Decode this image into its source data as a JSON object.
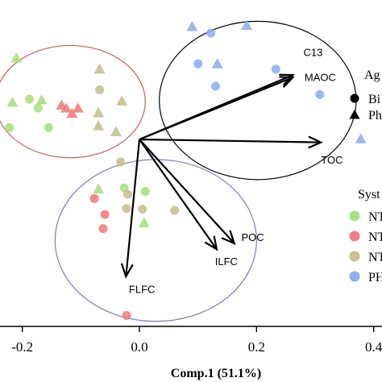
{
  "chart_data": {
    "type": "scatter",
    "subtype": "PCA biplot",
    "xlabel": "Comp.1 (51.1%)",
    "ylabel": "",
    "xlim": [
      -0.24,
      0.41
    ],
    "ylim": [
      -0.31,
      0.21
    ],
    "x_ticks": [
      -0.2,
      0.0,
      0.2,
      0.4
    ],
    "x_tick_labels": [
      "-0.2",
      "0.0",
      "0.2",
      "0.4"
    ],
    "grid": false,
    "colors": {
      "NT_green": "#a8e080",
      "NT_red": "#f08080",
      "NT_olive": "#c8c090",
      "PH_blue": "#8fb0f0",
      "arrow": "#000000",
      "ellipse_red": "#c06060",
      "ellipse_black": "#000000",
      "ellipse_purple": "#8080b0"
    },
    "legend": {
      "placement": "right",
      "shape_title": "Ag",
      "shape_entries": [
        {
          "label": "Bi",
          "marker": "circle"
        },
        {
          "label": "Ph",
          "marker": "triangle"
        }
      ],
      "color_title": "Syst",
      "color_entries": [
        {
          "label": "NT",
          "color": "#a8e080"
        },
        {
          "label": "NT",
          "color": "#f08080"
        },
        {
          "label": "NT",
          "color": "#c8c090"
        },
        {
          "label": "PH",
          "color": "#8fb0f0"
        }
      ]
    },
    "arrows": [
      {
        "label": "C13",
        "x": 0.262,
        "y": 0.109
      },
      {
        "label": "MAOC",
        "x": 0.262,
        "y": 0.105
      },
      {
        "label": "TOC",
        "x": 0.31,
        "y": -0.005
      },
      {
        "label": "POC",
        "x": 0.162,
        "y": -0.176
      },
      {
        "label": "ILFC",
        "x": 0.132,
        "y": -0.186
      },
      {
        "label": "FLFC",
        "x": -0.023,
        "y": -0.232
      }
    ],
    "arrow_label_offsets": {
      "C13": [
        0.018,
        0.032
      ],
      "MAOC": [
        0.02,
        -0.006
      ],
      "TOC": [
        0.0,
        -0.036
      ],
      "POC": [
        0.012,
        0.004
      ],
      "ILFC": [
        -0.003,
        -0.027
      ],
      "FLFC": [
        0.005,
        -0.028
      ]
    },
    "ellipses": [
      {
        "color": "#c06060",
        "cx": -0.118,
        "cy": 0.064,
        "rx": 0.128,
        "ry": 0.095
      },
      {
        "color": "#000000",
        "cx": 0.202,
        "cy": 0.066,
        "rx": 0.168,
        "ry": 0.134
      },
      {
        "color": "#8080b0",
        "cx": 0.028,
        "cy": -0.171,
        "rx": 0.172,
        "ry": 0.137
      }
    ],
    "series": [
      {
        "name": "NT",
        "color": "#a8e080",
        "points": [
          {
            "x": -0.21,
            "y": 0.137,
            "marker": "triangle"
          },
          {
            "x": -0.217,
            "y": 0.062,
            "marker": "triangle"
          },
          {
            "x": -0.188,
            "y": 0.068,
            "marker": "circle"
          },
          {
            "x": -0.167,
            "y": 0.066,
            "marker": "triangle"
          },
          {
            "x": -0.173,
            "y": 0.053,
            "marker": "circle"
          },
          {
            "x": -0.222,
            "y": 0.02,
            "marker": "circle"
          },
          {
            "x": -0.155,
            "y": 0.02,
            "marker": "circle"
          },
          {
            "x": -0.07,
            "y": -0.085,
            "marker": "triangle"
          },
          {
            "x": -0.026,
            "y": -0.082,
            "marker": "circle"
          },
          {
            "x": 0.01,
            "y": -0.088,
            "marker": "circle"
          },
          {
            "x": 0.008,
            "y": -0.142,
            "marker": "triangle"
          }
        ]
      },
      {
        "name": "NT",
        "color": "#f08080",
        "points": [
          {
            "x": -0.133,
            "y": 0.057,
            "marker": "triangle"
          },
          {
            "x": -0.125,
            "y": 0.052,
            "marker": "triangle"
          },
          {
            "x": -0.105,
            "y": 0.052,
            "marker": "triangle"
          },
          {
            "x": -0.115,
            "y": 0.043,
            "marker": "triangle"
          },
          {
            "x": -0.077,
            "y": -0.1,
            "marker": "circle"
          },
          {
            "x": -0.059,
            "y": -0.127,
            "marker": "circle"
          },
          {
            "x": -0.062,
            "y": -0.151,
            "marker": "circle"
          },
          {
            "x": -0.022,
            "y": -0.298,
            "marker": "circle"
          }
        ]
      },
      {
        "name": "NT",
        "color": "#c8c090",
        "points": [
          {
            "x": -0.068,
            "y": 0.118,
            "marker": "triangle"
          },
          {
            "x": -0.068,
            "y": 0.084,
            "marker": "circle"
          },
          {
            "x": -0.03,
            "y": 0.064,
            "marker": "triangle"
          },
          {
            "x": -0.07,
            "y": 0.044,
            "marker": "triangle"
          },
          {
            "x": -0.07,
            "y": 0.022,
            "marker": "triangle"
          },
          {
            "x": -0.04,
            "y": 0.012,
            "marker": "triangle"
          },
          {
            "x": -0.032,
            "y": -0.038,
            "marker": "circle"
          },
          {
            "x": -0.02,
            "y": -0.093,
            "marker": "circle"
          },
          {
            "x": -0.022,
            "y": -0.117,
            "marker": "circle"
          },
          {
            "x": 0.005,
            "y": -0.118,
            "marker": "circle"
          },
          {
            "x": 0.06,
            "y": -0.12,
            "marker": "circle"
          }
        ]
      },
      {
        "name": "PH",
        "color": "#8fb0f0",
        "points": [
          {
            "x": 0.09,
            "y": 0.19,
            "marker": "triangle"
          },
          {
            "x": 0.122,
            "y": 0.18,
            "marker": "circle"
          },
          {
            "x": 0.183,
            "y": 0.192,
            "marker": "triangle"
          },
          {
            "x": 0.1,
            "y": 0.128,
            "marker": "circle"
          },
          {
            "x": 0.133,
            "y": 0.127,
            "marker": "triangle"
          },
          {
            "x": 0.233,
            "y": 0.119,
            "marker": "circle"
          },
          {
            "x": 0.13,
            "y": 0.09,
            "marker": "circle"
          },
          {
            "x": 0.308,
            "y": 0.076,
            "marker": "circle"
          },
          {
            "x": 0.378,
            "y": 0.0,
            "marker": "triangle"
          }
        ]
      }
    ]
  }
}
